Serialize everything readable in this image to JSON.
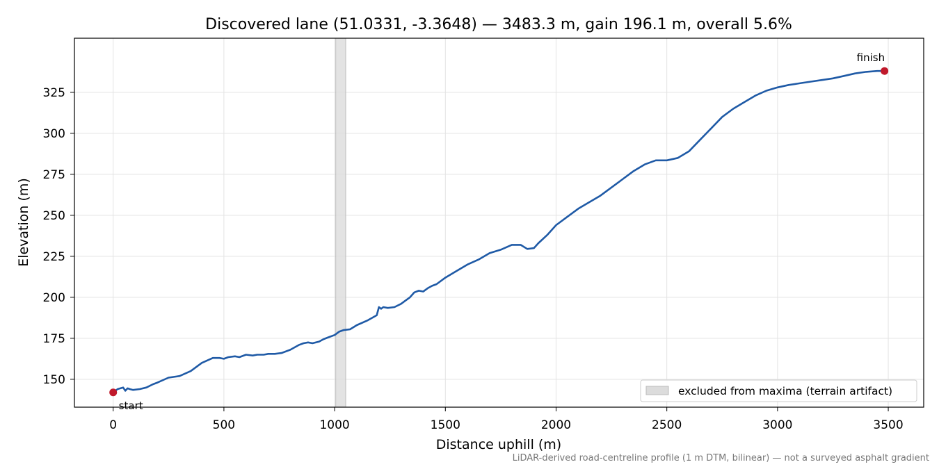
{
  "chart_data": {
    "type": "line",
    "title": "Discovered lane (51.0331, -3.3648) — 3483.3 m, gain 196.1 m, overall 5.6%",
    "xlabel": "Distance uphill (m)",
    "ylabel": "Elevation (m)",
    "xlim": [
      -175,
      3660
    ],
    "ylim": [
      133,
      358
    ],
    "xticks": [
      0,
      500,
      1000,
      1500,
      2000,
      2500,
      3000,
      3500
    ],
    "yticks": [
      150,
      175,
      200,
      225,
      250,
      275,
      300,
      325
    ],
    "grid": true,
    "legend_position": "lower-right",
    "line_color": "#1f5aa6",
    "marker_color": "#c0192b",
    "band_color": "#dcdcdc",
    "excluded_band": {
      "x_start": 1005,
      "x_end": 1050,
      "label": "excluded from maxima (terrain artifact)"
    },
    "series": [
      {
        "x": [
          0,
          20,
          45,
          55,
          65,
          75,
          90,
          120,
          150,
          180,
          200,
          250,
          300,
          350,
          400,
          450,
          480,
          500,
          520,
          550,
          570,
          600,
          630,
          650,
          680,
          700,
          730,
          760,
          800,
          840,
          860,
          880,
          900,
          930,
          950,
          980,
          1000,
          1020,
          1040,
          1070,
          1100,
          1150,
          1190,
          1200,
          1210,
          1220,
          1240,
          1270,
          1300,
          1320,
          1340,
          1360,
          1380,
          1400,
          1420,
          1440,
          1460,
          1500,
          1550,
          1600,
          1650,
          1700,
          1750,
          1800,
          1840,
          1870,
          1900,
          1920,
          1960,
          2000,
          2050,
          2100,
          2150,
          2200,
          2250,
          2300,
          2350,
          2400,
          2450,
          2500,
          2550,
          2600,
          2650,
          2700,
          2750,
          2800,
          2850,
          2900,
          2950,
          3000,
          3050,
          3100,
          3150,
          3200,
          3250,
          3300,
          3350,
          3400,
          3450,
          3483
        ],
        "y": [
          142,
          144,
          145,
          143,
          144.5,
          144,
          143.5,
          144,
          145,
          147,
          148,
          151,
          152,
          155,
          160,
          163,
          163,
          162.5,
          163.5,
          164,
          163.5,
          165,
          164.5,
          165,
          165,
          165.5,
          165.5,
          166,
          168,
          171,
          172,
          172.5,
          172,
          173,
          174.5,
          176,
          177,
          179,
          180,
          180.5,
          183,
          186,
          189,
          194,
          193,
          194,
          193.5,
          194,
          196,
          198,
          200,
          203,
          204,
          203.5,
          205.5,
          207,
          208,
          212,
          216,
          220,
          223,
          227,
          229,
          232,
          232,
          229.5,
          230,
          233,
          238,
          244,
          249,
          254,
          258,
          262,
          267,
          272,
          277,
          281,
          283.5,
          283.5,
          285,
          289,
          296,
          303,
          310,
          315,
          319,
          323,
          326,
          328,
          329.5,
          330.5,
          331.5,
          332.5,
          333.5,
          335,
          336.5,
          337.5,
          338,
          338
        ]
      }
    ],
    "annotations": [
      {
        "text": "start",
        "x": 0,
        "y": 142
      },
      {
        "text": "finish",
        "x": 3483,
        "y": 338
      }
    ]
  },
  "footer_note": "LiDAR-derived road-centreline profile (1 m DTM, bilinear) — not a surveyed asphalt gradient"
}
